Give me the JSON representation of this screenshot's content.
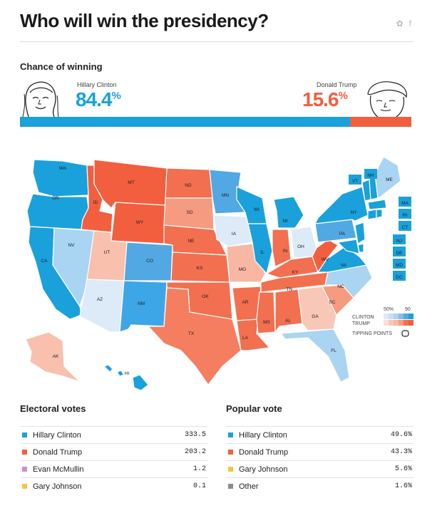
{
  "header": {
    "title": "Who will win the presidency?",
    "share_icons": [
      "twitter-icon",
      "facebook-icon"
    ]
  },
  "chance": {
    "label": "Chance of winning",
    "clinton": {
      "name": "Hillary Clinton",
      "pct": "84.4",
      "pct_sign": "%",
      "color": "#1aa1db",
      "value": 84.4
    },
    "trump": {
      "name": "Donald Trump",
      "pct": "15.6",
      "pct_sign": "%",
      "color": "#f15f3f",
      "value": 15.6
    }
  },
  "map": {
    "states": [
      "WA",
      "OR",
      "CA",
      "NV",
      "ID",
      "MT",
      "WY",
      "UT",
      "AZ",
      "CO",
      "NM",
      "ND",
      "SD",
      "NE",
      "KS",
      "OK",
      "TX",
      "MN",
      "IA",
      "MO",
      "AR",
      "LA",
      "WI",
      "IL",
      "MS",
      "MI",
      "IN",
      "KY",
      "TN",
      "AL",
      "OH",
      "GA",
      "FL",
      "SC",
      "NC",
      "VA",
      "WV",
      "PA",
      "NY",
      "ME",
      "VT",
      "NH",
      "MA",
      "RI",
      "CT",
      "NJ",
      "DE",
      "MD",
      "DC",
      "AK",
      "HI"
    ],
    "legend": {
      "pct_50": "50%",
      "pct_90": "90",
      "clinton": "CLINTON",
      "trump": "TRUMP",
      "tipping": "TIPPING POINTS"
    }
  },
  "electoral": {
    "title": "Electoral votes",
    "rows": [
      {
        "name": "Hillary Clinton",
        "value": "333.5",
        "color": "#1aa1db"
      },
      {
        "name": "Donald Trump",
        "value": "203.2",
        "color": "#f15f3f"
      },
      {
        "name": "Evan McMullin",
        "value": "1.2",
        "color": "#d78ad8"
      },
      {
        "name": "Gary Johnson",
        "value": "0.1",
        "color": "#f2c83a"
      }
    ]
  },
  "popular": {
    "title": "Popular vote",
    "rows": [
      {
        "name": "Hillary Clinton",
        "value": "49.6%",
        "color": "#1aa1db"
      },
      {
        "name": "Donald Trump",
        "value": "43.3%",
        "color": "#f15f3f"
      },
      {
        "name": "Gary Johnson",
        "value": "5.6%",
        "color": "#f2c83a"
      },
      {
        "name": "Other",
        "value": "1.6%",
        "color": "#8c8c8c"
      }
    ]
  }
}
